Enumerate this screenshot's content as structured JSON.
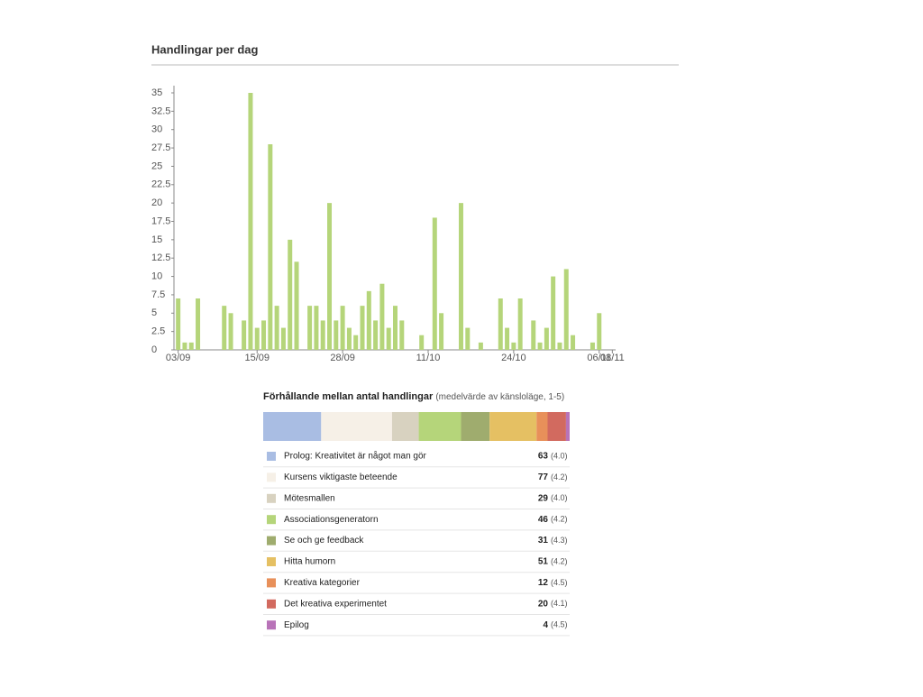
{
  "chart_data": [
    {
      "type": "bar",
      "title": "Handlingar per dag",
      "color": "#b5d57a",
      "x": [
        "03/09",
        "04/09",
        "05/09",
        "06/09",
        "10/09",
        "11/09",
        "13/09",
        "14/09",
        "15/09",
        "16/09",
        "17/09",
        "18/09",
        "19/09",
        "20/09",
        "21/09",
        "23/09",
        "24/09",
        "25/09",
        "26/09",
        "27/09",
        "28/09",
        "29/09",
        "30/09",
        "01/10",
        "02/10",
        "03/10",
        "04/10",
        "05/10",
        "06/10",
        "07/10",
        "10/10",
        "12/10",
        "13/10",
        "16/10",
        "17/10",
        "19/10",
        "22/10",
        "23/10",
        "24/10",
        "25/10",
        "27/10",
        "28/10",
        "29/10",
        "30/10",
        "31/10",
        "01/11",
        "02/11",
        "05/11",
        "06/11"
      ],
      "values": [
        7,
        1,
        1,
        7,
        6,
        5,
        4,
        35,
        3,
        4,
        28,
        6,
        3,
        15,
        12,
        6,
        6,
        4,
        20,
        4,
        6,
        3,
        2,
        6,
        8,
        4,
        9,
        3,
        6,
        4,
        2,
        18,
        5,
        20,
        3,
        1,
        7,
        3,
        1,
        7,
        4,
        1,
        3,
        10,
        1,
        11,
        2,
        1,
        5
      ],
      "xlim": [
        "03/09",
        "08/11"
      ],
      "xticks": [
        "03/09",
        "15/09",
        "28/09",
        "11/10",
        "24/10",
        "06/11",
        "08/11"
      ],
      "ylim": [
        0,
        35
      ],
      "yticks": [
        0,
        2.5,
        5,
        7.5,
        10,
        12.5,
        15,
        17.5,
        20,
        22.5,
        25,
        27.5,
        30,
        32.5,
        35
      ]
    },
    {
      "type": "stacked-bar",
      "title": "Förhållande mellan antal handlingar",
      "subtitle": "(medelvärde av känsloläge, 1-5)",
      "categories": [
        "Prolog: Kreativitet är något man gör",
        "Kursens viktigaste beteende",
        "Mötesmallen",
        "Associationsgeneratorn",
        "Se och ge feedback",
        "Hitta humorn",
        "Kreativa kategorier",
        "Det kreativa experimentet",
        "Epilog"
      ],
      "values": [
        63,
        77,
        29,
        46,
        31,
        51,
        12,
        20,
        4
      ],
      "mean_labels": [
        "(4.0)",
        "(4.2)",
        "(4.0)",
        "(4.2)",
        "(4.3)",
        "(4.2)",
        "(4.5)",
        "(4.1)",
        "(4.5)"
      ],
      "colors": [
        "#a9bde3",
        "#f6f0e7",
        "#d8d2c0",
        "#b5d57a",
        "#9fac6e",
        "#e5c063",
        "#e8905a",
        "#d26a5f",
        "#b873b8"
      ]
    }
  ]
}
